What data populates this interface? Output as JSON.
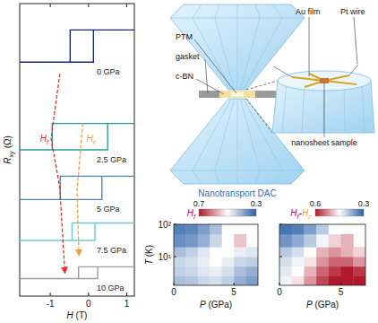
{
  "chart_data": [
    {
      "type": "line",
      "xlabel": [
        {
          "text": "H"
        },
        " (T)"
      ],
      "ylabel": [
        {
          "text": "R",
          "sub": "xy"
        },
        " (Ω)"
      ],
      "xlim": [
        -1.8,
        1.2
      ],
      "xticks": [
        -1,
        0,
        1
      ],
      "ylim": [
        0,
        10
      ],
      "tick_labels": "x",
      "series": [
        {
          "name": "0 GPa",
          "color": "#1c2670",
          "x": [
            -1.8,
            0.13,
            0.13,
            1.2,
            1.2,
            -0.48,
            -0.48,
            -1.8
          ],
          "values": [
            8.0,
            8.0,
            9.1,
            9.1,
            9.1,
            9.1,
            8.0,
            8.0
          ]
        },
        {
          "name": "2.5 GPa",
          "color": "#2a9d96",
          "x": [
            -1.8,
            0.5,
            0.5,
            1.2,
            1.2,
            -0.95,
            -0.95,
            -1.8
          ],
          "values": [
            5.0,
            5.0,
            5.9,
            5.9,
            5.9,
            5.9,
            5.0,
            5.0
          ]
        },
        {
          "name": "5 GPa",
          "color": "#4f84b8",
          "x": [
            -1.8,
            0.35,
            0.35,
            1.2,
            1.2,
            -0.74,
            -0.74,
            -1.8
          ],
          "values": [
            3.3,
            3.3,
            4.1,
            4.1,
            4.1,
            4.1,
            3.3,
            3.3
          ]
        },
        {
          "name": "7.5 GPa",
          "color": "#6cc9d4",
          "x": [
            -1.8,
            0.17,
            0.17,
            1.2,
            1.2,
            -0.43,
            -0.43,
            -1.8
          ],
          "values": [
            1.9,
            1.9,
            2.5,
            2.5,
            2.5,
            2.5,
            1.9,
            1.9
          ]
        },
        {
          "name": "10 GPa",
          "color": "#9a9e9e",
          "x": [
            -1.8,
            0.24,
            0.24,
            1.2,
            1.2,
            -0.26,
            -0.26,
            -1.8
          ],
          "values": [
            0.6,
            0.6,
            1.0,
            1.0,
            1.0,
            1.0,
            0.6,
            0.6
          ]
        }
      ],
      "annotations": [
        {
          "label": {
            "text": "H",
            "sub": "f"
          },
          "color": "#e8322e",
          "line_style": "dashed",
          "marker": "arrow",
          "x": [
            -0.75,
            -0.98,
            -0.75,
            -0.62
          ],
          "y": [
            7.6,
            5.4,
            3.7,
            0.8
          ]
        },
        {
          "label": {
            "text": "H",
            "sub": "c"
          },
          "color": "#f0a040",
          "line_style": "dashed",
          "marker": "arrow",
          "x": [
            -0.15,
            -0.3,
            -0.25
          ],
          "y": [
            5.9,
            3.6,
            1.4
          ]
        }
      ]
    },
    {
      "type": "heatmap",
      "xlabel": [
        {
          "text": "P"
        },
        " (GPa)"
      ],
      "ylabel": [
        {
          "text": "T"
        },
        " (K)"
      ],
      "xlim": [
        0,
        7
      ],
      "xticks": [
        0,
        5
      ],
      "ylim": [
        1.3,
        100
      ],
      "yticks": [
        {
          "value": 10,
          "label": "10¹"
        },
        {
          "value": 100,
          "label": "10²"
        }
      ],
      "log": "y",
      "x_bins": [
        0,
        1,
        2,
        3,
        4,
        5,
        6,
        7
      ],
      "y_bins": [
        1.3,
        2.5,
        5,
        10,
        20,
        50,
        100
      ],
      "values": [
        [
          0.42,
          0.43,
          0.45,
          0.46,
          0.44,
          0.4,
          0.38
        ],
        [
          0.44,
          0.45,
          0.47,
          0.48,
          0.46,
          0.42,
          0.4
        ],
        [
          0.45,
          0.46,
          0.48,
          0.5,
          0.48,
          0.45,
          0.44
        ],
        [
          0.42,
          0.44,
          0.47,
          0.5,
          0.5,
          0.48,
          0.47
        ],
        [
          0.36,
          0.37,
          0.4,
          0.45,
          0.5,
          0.55,
          null
        ],
        [
          0.34,
          0.35,
          0.38,
          0.42,
          0.5,
          null,
          null
        ]
      ],
      "colorbar": {
        "title": [
          {
            "text": "H",
            "sub": "f",
            "color": "#d4006a"
          }
        ],
        "range": [
          0.3,
          0.7
        ],
        "ticks": [
          0.7,
          0.3
        ],
        "colors": [
          "#2a5fa8",
          "#ffffff",
          "#b2182b"
        ]
      }
    },
    {
      "type": "heatmap",
      "xlabel": [
        {
          "text": "P"
        },
        " (GPa)"
      ],
      "xlim": [
        0,
        7
      ],
      "xticks": [
        0,
        5
      ],
      "ylim": [
        1.3,
        100
      ],
      "yticks": [
        10,
        100
      ],
      "log": "y",
      "tick_labels": "x",
      "x_bins": [
        0,
        1,
        2,
        3,
        4,
        5,
        6,
        7
      ],
      "y_bins": [
        1.3,
        2.5,
        5,
        10,
        20,
        50,
        100
      ],
      "values": [
        [
          0.44,
          0.47,
          0.52,
          0.57,
          0.6,
          0.6,
          0.6
        ],
        [
          0.43,
          0.45,
          0.5,
          0.55,
          0.58,
          0.6,
          0.58
        ],
        [
          0.42,
          0.44,
          0.47,
          0.52,
          0.55,
          0.55,
          0.52
        ],
        [
          0.4,
          0.42,
          0.45,
          0.5,
          0.52,
          0.5,
          0.48
        ],
        [
          0.35,
          0.37,
          0.4,
          0.44,
          0.48,
          0.5,
          null
        ],
        [
          0.32,
          0.33,
          0.36,
          0.4,
          0.45,
          null,
          null
        ]
      ],
      "colorbar": {
        "title": [
          {
            "text": "H",
            "sub": "f",
            "color": "#d4006a"
          },
          "-",
          {
            "text": "H",
            "sub": "c",
            "color": "#f0a040"
          }
        ],
        "range": [
          0.3,
          0.6
        ],
        "ticks": [
          0.6,
          0.3
        ],
        "colors": [
          "#2a5fa8",
          "#ffffff",
          "#b2182b"
        ]
      }
    }
  ],
  "diagram": {
    "title": "Nanotransport DAC",
    "labels": [
      "PTM",
      "gasket",
      "c-BN",
      "Au film",
      "Pt wire",
      "nanosheet sample"
    ]
  }
}
